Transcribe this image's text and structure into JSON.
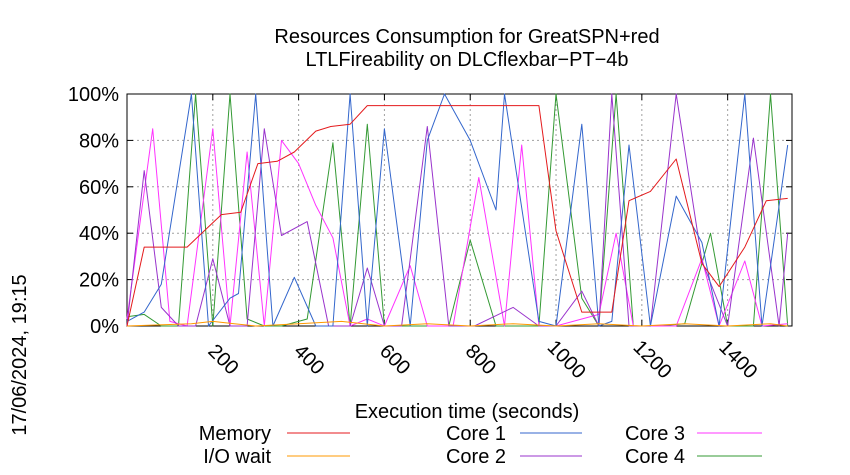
{
  "chart_data": {
    "type": "line",
    "title": "Resources Consumption for GreatSPN+red",
    "subtitle": "LTLFireability on DLCflexbar−PT−4b",
    "xlabel": "Execution time (seconds)",
    "ylabel": "",
    "side_label": "17/06/2024, 19:15",
    "xlim": [
      0,
      1550
    ],
    "ylim": [
      0,
      100
    ],
    "x_ticks": [
      "200",
      "400",
      "600",
      "800",
      "1000",
      "1200",
      "1400"
    ],
    "x_tick_values": [
      200,
      400,
      600,
      800,
      1000,
      1200,
      1400
    ],
    "y_ticks": [
      "0%",
      "20%",
      "40%",
      "60%",
      "80%",
      "100%"
    ],
    "y_tick_values": [
      0,
      20,
      40,
      60,
      80,
      100
    ],
    "grid": true,
    "legend_position": "bottom",
    "series": [
      {
        "name": "Memory",
        "color": "#e41a1c",
        "x": [
          0,
          40,
          80,
          140,
          180,
          220,
          265,
          305,
          350,
          390,
          440,
          475,
          520,
          560,
          630,
          720,
          960,
          1000,
          1060,
          1100,
          1130,
          1170,
          1220,
          1280,
          1340,
          1380,
          1440,
          1490,
          1540
        ],
        "y": [
          0,
          34,
          34,
          34,
          41,
          48,
          49,
          70,
          71,
          75,
          84,
          86,
          87,
          95,
          95,
          95,
          95,
          41,
          6,
          6,
          6,
          54,
          58,
          72,
          27,
          17,
          34,
          54,
          55
        ]
      },
      {
        "name": "I/O wait",
        "color": "#ff9900",
        "x": [
          0,
          150,
          200,
          250,
          300,
          400,
          500,
          600,
          700,
          800,
          900,
          1000,
          1100,
          1200,
          1300,
          1400,
          1500,
          1540
        ],
        "y": [
          0,
          1,
          2,
          1,
          0,
          1,
          2,
          0,
          1,
          0,
          1,
          0,
          1,
          0,
          1,
          0,
          1,
          0
        ]
      },
      {
        "name": "Core 1",
        "color": "#3366cc",
        "x": [
          0,
          40,
          80,
          150,
          190,
          240,
          260,
          300,
          340,
          390,
          440,
          480,
          520,
          560,
          600,
          660,
          700,
          740,
          800,
          860,
          880,
          960,
          1000,
          1060,
          1100,
          1130,
          1170,
          1220,
          1280,
          1340,
          1380,
          1440,
          1480,
          1540
        ],
        "y": [
          2,
          6,
          18,
          100,
          0,
          12,
          14,
          100,
          0,
          21,
          0,
          0,
          100,
          0,
          85,
          0,
          80,
          100,
          80,
          50,
          100,
          2,
          0,
          87,
          0,
          2,
          78,
          0,
          56,
          36,
          0,
          100,
          0,
          78
        ]
      },
      {
        "name": "Core 2",
        "color": "#9933cc",
        "x": [
          0,
          40,
          80,
          120,
          160,
          200,
          240,
          280,
          320,
          360,
          420,
          470,
          520,
          560,
          600,
          640,
          700,
          750,
          810,
          900,
          960,
          1000,
          1060,
          1100,
          1130,
          1170,
          1220,
          1280,
          1340,
          1400,
          1460,
          1520,
          1540
        ],
        "y": [
          0,
          67,
          8,
          0,
          0,
          29,
          0,
          0,
          85,
          39,
          45,
          0,
          0,
          25,
          0,
          0,
          86,
          0,
          0,
          8,
          0,
          0,
          15,
          0,
          100,
          0,
          0,
          100,
          28,
          0,
          81,
          0,
          40
        ]
      },
      {
        "name": "Core 3",
        "color": "#ff33ff",
        "x": [
          0,
          60,
          100,
          140,
          200,
          240,
          280,
          320,
          360,
          400,
          440,
          480,
          520,
          560,
          600,
          660,
          700,
          760,
          820,
          880,
          920,
          960,
          1000,
          1060,
          1100,
          1140,
          1180,
          1240,
          1280,
          1340,
          1380,
          1440,
          1480,
          1540
        ],
        "y": [
          3,
          85,
          2,
          0,
          85,
          0,
          75,
          0,
          80,
          70,
          52,
          38,
          0,
          3,
          0,
          26,
          0,
          0,
          64,
          0,
          78,
          0,
          0,
          3,
          5,
          40,
          0,
          0,
          0,
          29,
          0,
          28,
          0,
          1
        ]
      },
      {
        "name": "Core 4",
        "color": "#339933",
        "x": [
          0,
          40,
          80,
          120,
          160,
          200,
          240,
          280,
          320,
          360,
          420,
          480,
          520,
          560,
          600,
          640,
          700,
          750,
          800,
          860,
          920,
          960,
          1000,
          1060,
          1100,
          1140,
          1180,
          1240,
          1300,
          1360,
          1400,
          1460,
          1500,
          1540
        ],
        "y": [
          4,
          5,
          0,
          0,
          100,
          0,
          100,
          3,
          0,
          0,
          3,
          79,
          0,
          87,
          0,
          0,
          0,
          0,
          37,
          0,
          0,
          0,
          100,
          12,
          0,
          100,
          0,
          0,
          1,
          40,
          0,
          0,
          100,
          0
        ]
      }
    ]
  }
}
